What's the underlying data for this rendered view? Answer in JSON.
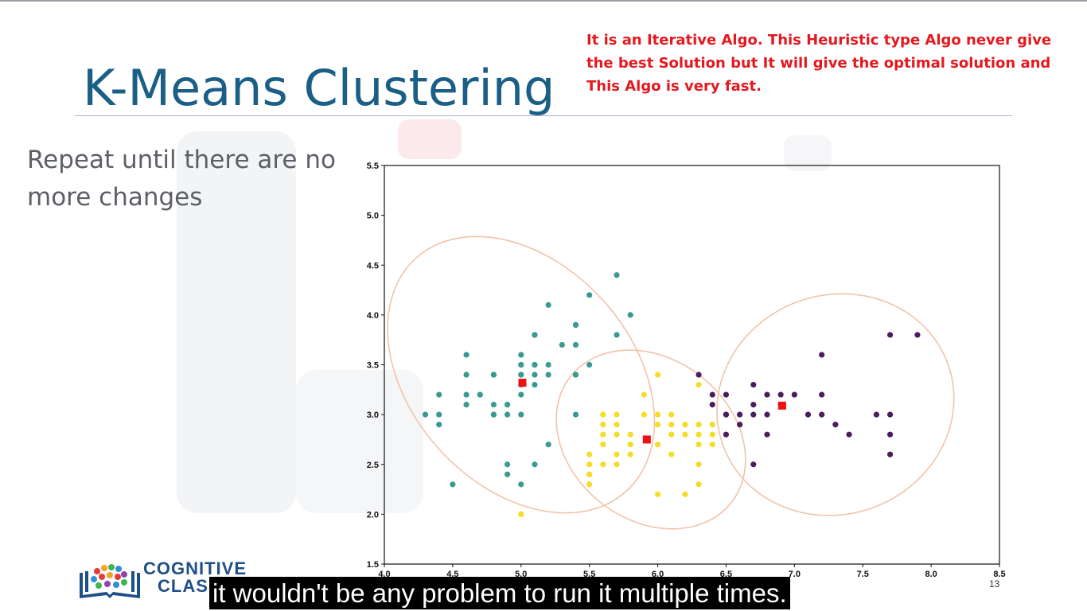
{
  "slide": {
    "title": "K-Means Clustering",
    "bullet": "Repeat until there are no more changes",
    "annotation": "It is an Iterative Algo. This Heuristic type Algo never give the best Solution but It will give the optimal solution and This Algo is very fast.",
    "page_number": "13",
    "logo": {
      "line1": "COGNITIVE",
      "line2": "CLASS",
      "icon": "books-brain-icon"
    },
    "colors": {
      "title": "#1b5f87",
      "annotation": "#e3191f",
      "bullet": "#5c5f66"
    }
  },
  "subtitle": "it wouldn't be any problem to run it multiple times.",
  "chart_data": {
    "type": "scatter",
    "xlim": [
      4.0,
      8.5
    ],
    "ylim": [
      1.5,
      5.5
    ],
    "xticks": [
      "4.0",
      "4.5",
      "5.0",
      "5.5",
      "6.0",
      "6.5",
      "7.0",
      "7.5",
      "8.0",
      "8.5"
    ],
    "yticks": [
      "1.5",
      "2.0",
      "2.5",
      "3.0",
      "3.5",
      "4.0",
      "4.5",
      "5.0",
      "5.5"
    ],
    "grid": false,
    "series": [
      {
        "color": "#3a9a92",
        "points": [
          [
            4.3,
            3.0
          ],
          [
            4.4,
            3.2
          ],
          [
            4.4,
            3.0
          ],
          [
            4.4,
            2.9
          ],
          [
            4.5,
            2.3
          ],
          [
            4.6,
            3.6
          ],
          [
            4.6,
            3.4
          ],
          [
            4.6,
            3.2
          ],
          [
            4.6,
            3.1
          ],
          [
            4.7,
            3.2
          ],
          [
            4.7,
            3.2
          ],
          [
            4.8,
            3.4
          ],
          [
            4.8,
            3.4
          ],
          [
            4.8,
            3.1
          ],
          [
            4.8,
            3.0
          ],
          [
            4.8,
            3.0
          ],
          [
            4.9,
            3.1
          ],
          [
            4.9,
            3.1
          ],
          [
            4.9,
            3.0
          ],
          [
            4.9,
            2.5
          ],
          [
            4.9,
            2.4
          ],
          [
            5.0,
            3.6
          ],
          [
            5.0,
            3.5
          ],
          [
            5.0,
            3.5
          ],
          [
            5.0,
            3.4
          ],
          [
            5.0,
            3.4
          ],
          [
            5.0,
            3.3
          ],
          [
            5.0,
            3.2
          ],
          [
            5.0,
            3.0
          ],
          [
            5.0,
            2.3
          ],
          [
            5.1,
            3.8
          ],
          [
            5.1,
            3.8
          ],
          [
            5.1,
            3.5
          ],
          [
            5.1,
            3.5
          ],
          [
            5.1,
            3.4
          ],
          [
            5.1,
            3.3
          ],
          [
            5.1,
            2.5
          ],
          [
            5.2,
            4.1
          ],
          [
            5.2,
            3.5
          ],
          [
            5.2,
            3.4
          ],
          [
            5.2,
            2.7
          ],
          [
            5.3,
            3.7
          ],
          [
            5.4,
            3.9
          ],
          [
            5.4,
            3.9
          ],
          [
            5.4,
            3.7
          ],
          [
            5.4,
            3.4
          ],
          [
            5.4,
            3.4
          ],
          [
            5.4,
            3.0
          ],
          [
            5.5,
            4.2
          ],
          [
            5.5,
            3.5
          ],
          [
            5.7,
            4.4
          ],
          [
            5.7,
            3.8
          ],
          [
            5.8,
            4.0
          ]
        ]
      },
      {
        "color": "#f5dc28",
        "points": [
          [
            5.0,
            2.0
          ],
          [
            5.5,
            2.6
          ],
          [
            5.5,
            2.5
          ],
          [
            5.5,
            2.4
          ],
          [
            5.5,
            2.4
          ],
          [
            5.5,
            2.3
          ],
          [
            5.6,
            3.0
          ],
          [
            5.6,
            2.9
          ],
          [
            5.6,
            2.8
          ],
          [
            5.6,
            2.7
          ],
          [
            5.6,
            2.5
          ],
          [
            5.7,
            3.0
          ],
          [
            5.7,
            2.9
          ],
          [
            5.7,
            2.8
          ],
          [
            5.7,
            2.6
          ],
          [
            5.7,
            2.5
          ],
          [
            5.8,
            2.8
          ],
          [
            5.8,
            2.7
          ],
          [
            5.8,
            2.7
          ],
          [
            5.8,
            2.6
          ],
          [
            5.9,
            3.2
          ],
          [
            5.9,
            3.0
          ],
          [
            6.0,
            3.4
          ],
          [
            6.0,
            3.0
          ],
          [
            6.0,
            2.9
          ],
          [
            6.0,
            2.7
          ],
          [
            6.0,
            2.2
          ],
          [
            6.1,
            3.0
          ],
          [
            6.1,
            2.9
          ],
          [
            6.1,
            2.8
          ],
          [
            6.1,
            2.6
          ],
          [
            6.2,
            2.9
          ],
          [
            6.2,
            2.8
          ],
          [
            6.2,
            2.2
          ],
          [
            6.3,
            3.3
          ],
          [
            6.3,
            2.9
          ],
          [
            6.3,
            2.8
          ],
          [
            6.3,
            2.7
          ],
          [
            6.3,
            2.5
          ],
          [
            6.3,
            2.3
          ],
          [
            6.4,
            2.9
          ],
          [
            6.4,
            2.8
          ],
          [
            6.4,
            2.7
          ]
        ]
      },
      {
        "color": "#4b1d5e",
        "points": [
          [
            6.3,
            3.4
          ],
          [
            6.4,
            3.2
          ],
          [
            6.4,
            3.1
          ],
          [
            6.5,
            3.2
          ],
          [
            6.5,
            3.0
          ],
          [
            6.5,
            3.0
          ],
          [
            6.5,
            2.8
          ],
          [
            6.6,
            3.0
          ],
          [
            6.6,
            2.9
          ],
          [
            6.7,
            3.3
          ],
          [
            6.7,
            3.1
          ],
          [
            6.7,
            3.0
          ],
          [
            6.7,
            2.5
          ],
          [
            6.8,
            3.2
          ],
          [
            6.8,
            3.0
          ],
          [
            6.8,
            2.8
          ],
          [
            6.9,
            3.2
          ],
          [
            6.9,
            3.1
          ],
          [
            7.0,
            3.2
          ],
          [
            7.1,
            3.0
          ],
          [
            7.2,
            3.6
          ],
          [
            7.2,
            3.2
          ],
          [
            7.2,
            3.0
          ],
          [
            7.3,
            2.9
          ],
          [
            7.4,
            2.8
          ],
          [
            7.6,
            3.0
          ],
          [
            7.7,
            3.8
          ],
          [
            7.7,
            3.0
          ],
          [
            7.7,
            2.8
          ],
          [
            7.7,
            2.6
          ],
          [
            7.9,
            3.8
          ]
        ]
      }
    ],
    "centroids": [
      [
        5.01,
        3.32
      ],
      [
        5.92,
        2.75
      ],
      [
        6.91,
        3.09
      ]
    ],
    "centroid_color": "#ee1111"
  }
}
